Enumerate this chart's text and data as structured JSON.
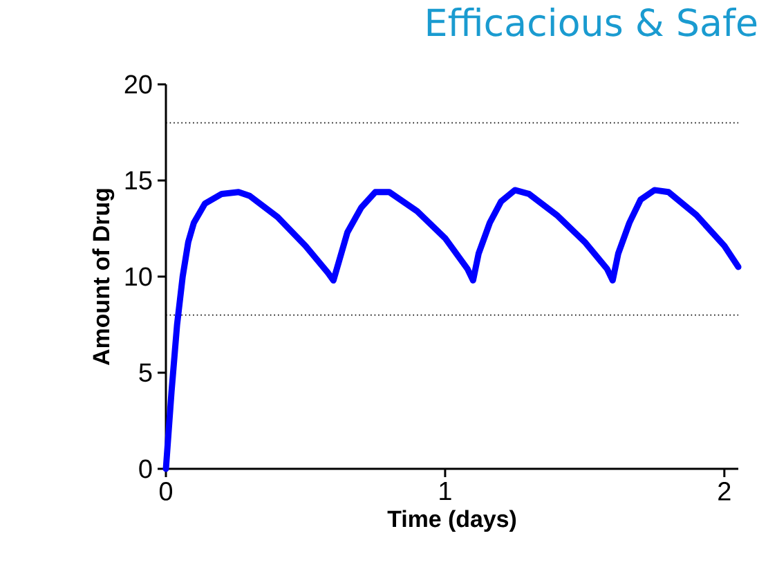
{
  "chart_data": {
    "type": "line",
    "title": "Efficacious & Safe",
    "xlabel": "Time (days)",
    "ylabel": "Amount of Drug",
    "x": [
      0,
      0.02,
      0.04,
      0.06,
      0.08,
      0.1,
      0.14,
      0.2,
      0.26,
      0.3,
      0.4,
      0.5,
      0.58,
      0.6,
      0.62,
      0.65,
      0.7,
      0.75,
      0.8,
      0.9,
      1.0,
      1.08,
      1.1,
      1.12,
      1.16,
      1.2,
      1.25,
      1.3,
      1.4,
      1.5,
      1.58,
      1.6,
      1.62,
      1.66,
      1.7,
      1.75,
      1.8,
      1.9,
      2.0,
      2.05
    ],
    "series": [
      {
        "color": "#0000ff",
        "values": [
          0,
          4,
          7.5,
          10,
          11.8,
          12.8,
          13.8,
          14.3,
          14.4,
          14.2,
          13.1,
          11.6,
          10.2,
          9.8,
          10.8,
          12.3,
          13.6,
          14.4,
          14.4,
          13.4,
          12.0,
          10.4,
          9.8,
          11.2,
          12.8,
          13.9,
          14.5,
          14.3,
          13.2,
          11.8,
          10.4,
          9.8,
          11.2,
          12.8,
          14.0,
          14.5,
          14.4,
          13.2,
          11.6,
          10.5
        ]
      }
    ],
    "xlim": [
      0,
      2.05
    ],
    "ylim": [
      0,
      20
    ],
    "xticks": [
      0,
      1,
      2
    ],
    "yticks": [
      0,
      5,
      10,
      15,
      20
    ],
    "ref_lines": [
      {
        "axis": "y",
        "value": 18,
        "color": "#000000",
        "line_style": "dotted"
      },
      {
        "axis": "y",
        "value": 8,
        "color": "#000000",
        "line_style": "dotted"
      }
    ],
    "marker": "none",
    "line_style": "solid"
  }
}
